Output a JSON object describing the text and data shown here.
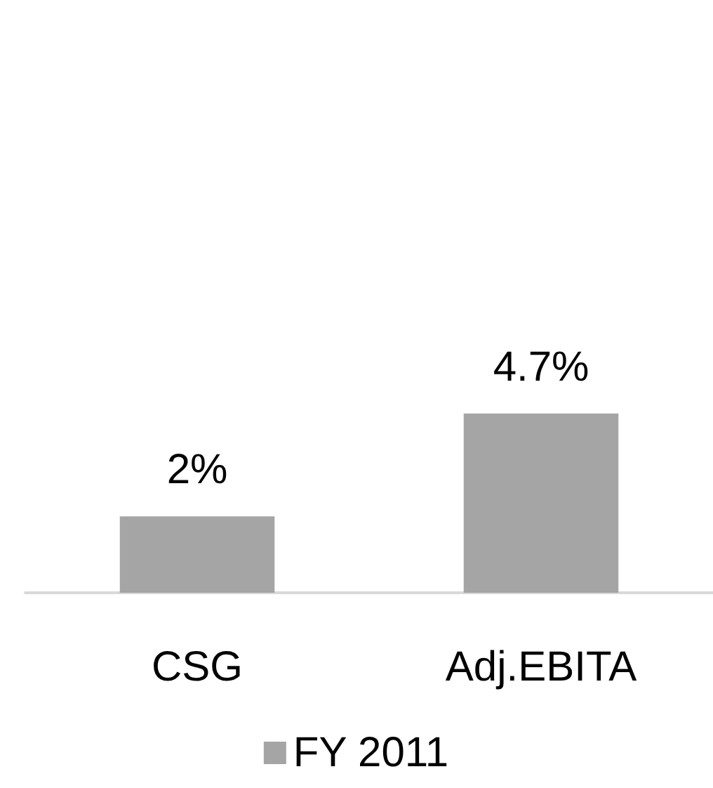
{
  "chart_data": {
    "type": "bar",
    "categories": [
      "CSG",
      "Adj.EBITA"
    ],
    "series": [
      {
        "name": "FY 2011",
        "color": "#a5a5a5",
        "values": [
          2,
          4.7
        ],
        "value_labels": [
          "2%",
          "4.7%"
        ]
      }
    ],
    "legend": "bottom"
  }
}
